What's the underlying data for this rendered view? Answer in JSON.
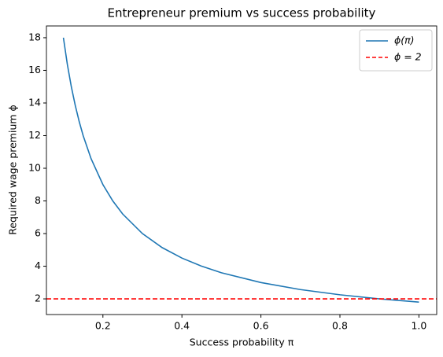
{
  "chart_data": {
    "type": "line",
    "title": "Entrepreneur premium vs success probability",
    "xlabel": "Success probability π",
    "ylabel": "Required wage premium ϕ",
    "x": [
      0.1,
      0.11,
      0.12,
      0.13,
      0.14,
      0.15,
      0.17,
      0.2,
      0.225,
      0.25,
      0.3,
      0.35,
      0.4,
      0.45,
      0.5,
      0.6,
      0.7,
      0.8,
      0.9,
      1.0
    ],
    "series": [
      {
        "name": "ϕ(π)",
        "color": "#1f77b4",
        "values": [
          18,
          16.36,
          15,
          13.85,
          12.86,
          12,
          10.59,
          9,
          8,
          7.2,
          6,
          5.14,
          4.5,
          4,
          3.6,
          3,
          2.57,
          2.25,
          2,
          1.8
        ]
      }
    ],
    "hlines": [
      {
        "name": "ϕ = 2",
        "value": 2,
        "color": "#ff0000",
        "style": "dashed"
      }
    ],
    "xlim": [
      0.057,
      1.045
    ],
    "ylim": [
      1.04,
      18.72
    ],
    "xticks": [
      0.2,
      0.4,
      0.6,
      0.8,
      1.0
    ],
    "yticks": [
      2,
      4,
      6,
      8,
      10,
      12,
      14,
      16,
      18
    ],
    "legend": "upper right"
  }
}
